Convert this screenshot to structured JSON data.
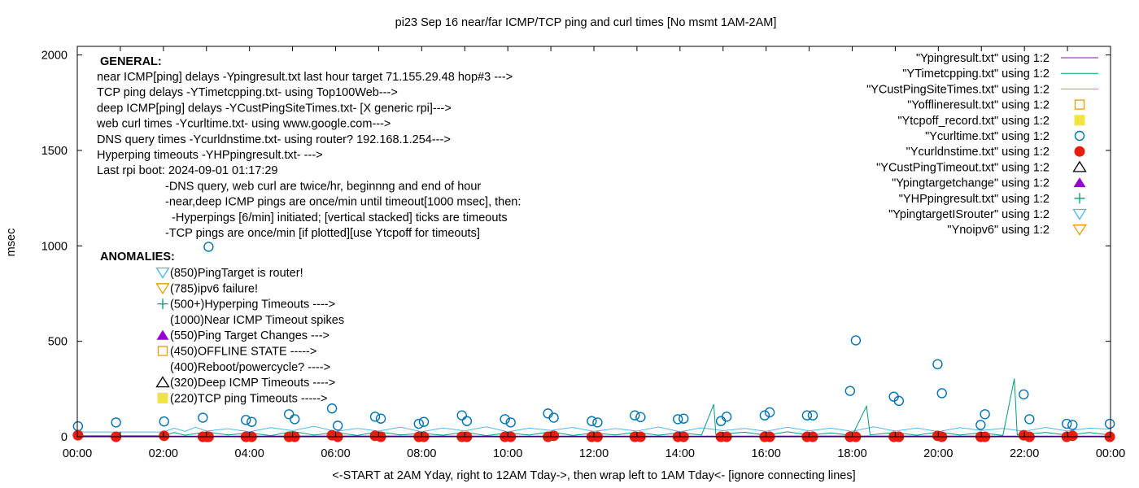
{
  "chart_data": {
    "type": "line",
    "title": "pi23 Sep 16  near/far ICMP/TCP ping and curl times [No msmt 1AM-2AM]",
    "xlabel": "<-START at 2AM Yday, right to 12AM Tday->, then wrap left to 1AM Tday<- [ignore connecting lines]",
    "ylabel": "msec",
    "xlim": [
      "00:00",
      "24:00"
    ],
    "ylim": [
      0,
      2045
    ],
    "x_ticks": [
      "00:00",
      "02:00",
      "04:00",
      "06:00",
      "08:00",
      "10:00",
      "12:00",
      "14:00",
      "16:00",
      "18:00",
      "20:00",
      "22:00",
      "00:00"
    ],
    "y_ticks": [
      "0",
      "500",
      "1000",
      "1500",
      "2000"
    ],
    "y_tick_values": [
      0,
      500,
      1000,
      1500,
      2000
    ],
    "grid": false,
    "legend_placement": "top-right",
    "general_heading": "GENERAL:",
    "general_lines": [
      "near ICMP[ping] delays -Ypingresult.txt last hour target 71.155.29.48 hop#3 --->",
      "TCP ping delays -YTimetcpping.txt- using Top100Web--->",
      "deep ICMP[ping] delays -YCustPingSiteTimes.txt- [X generic rpi]--->",
      "web curl times -Ycurltime.txt- using www.google.com--->",
      "DNS query times -Ycurldnstime.txt- using router? 192.168.1.254--->",
      "Hyperping timeouts -YHPpingresult.txt- --->",
      "Last rpi boot: 2024-09-01 01:17:29"
    ],
    "general_notes": [
      "-DNS query, web curl are twice/hr, beginnng and end of hour",
      "-near,deep ICMP pings are once/min until timeout[1000 msec], then:",
      "  -Hyperpings [6/min] initiated; [vertical stacked] ticks are timeouts",
      "-TCP pings are once/min [if plotted][use Ytcpoff for timeouts]"
    ],
    "anomalies_heading": "ANOMALIES:",
    "anomalies": [
      {
        "marker": "triangle-down-open",
        "color": "#56b4e9",
        "text": "(850)PingTarget is router!"
      },
      {
        "marker": "triangle-down-open",
        "color": "#e69f00",
        "text": "(785)ipv6 failure!"
      },
      {
        "marker": "plus",
        "color": "#009e73",
        "text": "(500+)Hyperping Timeouts ---->"
      },
      {
        "marker": "none",
        "color": "",
        "text": "(1000)Near ICMP Timeout spikes"
      },
      {
        "marker": "triangle-up-filled",
        "color": "#9400d3",
        "text": "(550)Ping Target Changes --->"
      },
      {
        "marker": "square-open",
        "color": "#e69f00",
        "text": "(450)OFFLINE STATE ----->"
      },
      {
        "marker": "none",
        "color": "",
        "text": "(400)Reboot/powercycle? ---->"
      },
      {
        "marker": "triangle-up-open",
        "color": "#000000",
        "text": "(320)Deep ICMP Timeouts ---->"
      },
      {
        "marker": "square-filled",
        "color": "#f0e442",
        "text": "(220)TCP ping Timeouts ----->"
      }
    ],
    "legend": [
      {
        "label": "\"Ypingresult.txt\" using 1:2",
        "style": "line",
        "color": "#9400d3"
      },
      {
        "label": "\"YTimetcpping.txt\" using 1:2",
        "style": "line",
        "color": "#009e73"
      },
      {
        "label": "\"YCustPingSiteTimes.txt\" using 1:2",
        "style": "line",
        "color": "#56b4e9"
      },
      {
        "label": "\"Yofflineresult.txt\" using 1:2",
        "style": "square-open",
        "color": "#e69f00"
      },
      {
        "label": "\"Ytcpoff_record.txt\" using 1:2",
        "style": "square-filled",
        "color": "#f0e442"
      },
      {
        "label": "\"Ycurltime.txt\" using 1:2",
        "style": "circle-open",
        "color": "#0072b2"
      },
      {
        "label": "\"Ycurldnstime.txt\" using 1:2",
        "style": "circle-filled",
        "color": "#e51e10"
      },
      {
        "label": "\"YCustPingTimeout.txt\" using 1:2",
        "style": "triangle-up-open",
        "color": "#000000"
      },
      {
        "label": "\"Ypingtargetchange\" using 1:2",
        "style": "triangle-up-filled",
        "color": "#9400d3"
      },
      {
        "label": "\"YHPpingresult.txt\" using 1:2",
        "style": "plus",
        "color": "#009e73"
      },
      {
        "label": "\"YpingtargetISrouter\" using 1:2",
        "style": "triangle-down-open",
        "color": "#56b4e9"
      },
      {
        "label": "\"Ynoipv6\" using 1:2",
        "style": "triangle-down-open",
        "color": "#e69f00"
      }
    ],
    "series": [
      {
        "name": "\"YCustPingSiteTimes.txt\" using 1:2",
        "color": "#56b4e9",
        "points": [
          [
            "00:01",
            25
          ],
          [
            "02:00",
            25
          ],
          [
            "02:15",
            45
          ],
          [
            "02:30",
            28
          ],
          [
            "02:45",
            50
          ],
          [
            "03:00",
            30
          ],
          [
            "03:30",
            42
          ],
          [
            "04:00",
            26
          ],
          [
            "04:30",
            48
          ],
          [
            "05:00",
            32
          ],
          [
            "05:30",
            55
          ],
          [
            "06:00",
            28
          ],
          [
            "06:30",
            44
          ],
          [
            "07:00",
            30
          ],
          [
            "07:30",
            50
          ],
          [
            "08:00",
            27
          ],
          [
            "08:30",
            46
          ],
          [
            "09:00",
            31
          ],
          [
            "09:30",
            52
          ],
          [
            "10:00",
            26
          ],
          [
            "10:30",
            45
          ],
          [
            "11:00",
            33
          ],
          [
            "11:30",
            49
          ],
          [
            "12:00",
            28
          ],
          [
            "12:30",
            43
          ],
          [
            "13:00",
            30
          ],
          [
            "13:30",
            51
          ],
          [
            "14:00",
            27
          ],
          [
            "14:30",
            47
          ],
          [
            "15:00",
            32
          ],
          [
            "15:30",
            44
          ],
          [
            "16:00",
            29
          ],
          [
            "16:30",
            50
          ],
          [
            "17:00",
            31
          ],
          [
            "17:30",
            45
          ],
          [
            "18:00",
            28
          ],
          [
            "18:30",
            52
          ],
          [
            "19:00",
            30
          ],
          [
            "19:30",
            46
          ],
          [
            "20:00",
            27
          ],
          [
            "20:30",
            48
          ],
          [
            "21:00",
            33
          ],
          [
            "21:30",
            44
          ],
          [
            "22:00",
            29
          ],
          [
            "22:30",
            49
          ],
          [
            "23:00",
            30
          ],
          [
            "23:30",
            45
          ],
          [
            "23:59",
            40
          ]
        ]
      },
      {
        "name": "\"YTimetcpping.txt\" using 1:2",
        "color": "#009e73",
        "points": [
          [
            "00:01",
            5
          ],
          [
            "01:30",
            5
          ],
          [
            "02:00",
            5
          ],
          [
            "02:15",
            22
          ],
          [
            "02:30",
            8
          ],
          [
            "03:00",
            25
          ],
          [
            "03:30",
            10
          ],
          [
            "04:00",
            20
          ],
          [
            "04:30",
            6
          ],
          [
            "05:00",
            28
          ],
          [
            "05:30",
            9
          ],
          [
            "06:00",
            22
          ],
          [
            "06:30",
            7
          ],
          [
            "07:00",
            26
          ],
          [
            "07:30",
            10
          ],
          [
            "08:00",
            18
          ],
          [
            "08:30",
            8
          ],
          [
            "09:00",
            24
          ],
          [
            "09:30",
            6
          ],
          [
            "10:00",
            20
          ],
          [
            "10:30",
            9
          ],
          [
            "11:00",
            27
          ],
          [
            "11:30",
            7
          ],
          [
            "12:00",
            19
          ],
          [
            "12:30",
            10
          ],
          [
            "13:00",
            23
          ],
          [
            "13:30",
            8
          ],
          [
            "14:00",
            21
          ],
          [
            "14:30",
            9
          ],
          [
            "14:47",
            170
          ],
          [
            "14:50",
            12
          ],
          [
            "15:30",
            24
          ],
          [
            "16:00",
            8
          ],
          [
            "16:30",
            26
          ],
          [
            "17:00",
            9
          ],
          [
            "17:30",
            20
          ],
          [
            "18:00",
            7
          ],
          [
            "18:20",
            160
          ],
          [
            "18:25",
            10
          ],
          [
            "19:00",
            22
          ],
          [
            "19:30",
            8
          ],
          [
            "20:00",
            25
          ],
          [
            "20:30",
            9
          ],
          [
            "21:00",
            21
          ],
          [
            "21:30",
            7
          ],
          [
            "21:46",
            305
          ],
          [
            "21:50",
            10
          ],
          [
            "22:30",
            23
          ],
          [
            "23:00",
            8
          ],
          [
            "23:30",
            22
          ],
          [
            "23:59",
            10
          ]
        ]
      },
      {
        "name": "\"Ypingresult.txt\" using 1:2",
        "color": "#9400d3",
        "points": [
          [
            "00:01",
            3
          ],
          [
            "06:00",
            4
          ],
          [
            "12:00",
            3
          ],
          [
            "18:00",
            4
          ],
          [
            "23:59",
            3
          ]
        ]
      }
    ],
    "curl_points": [
      [
        "00:01",
        55
      ],
      [
        "00:54",
        75
      ],
      [
        "02:01",
        80
      ],
      [
        "02:55",
        100
      ],
      [
        "03:03",
        995
      ],
      [
        "03:55",
        88
      ],
      [
        "04:03",
        78
      ],
      [
        "04:55",
        118
      ],
      [
        "05:03",
        92
      ],
      [
        "05:55",
        148
      ],
      [
        "06:03",
        58
      ],
      [
        "06:55",
        105
      ],
      [
        "07:03",
        95
      ],
      [
        "07:56",
        68
      ],
      [
        "08:03",
        78
      ],
      [
        "08:56",
        112
      ],
      [
        "09:03",
        82
      ],
      [
        "09:56",
        92
      ],
      [
        "10:04",
        75
      ],
      [
        "10:56",
        122
      ],
      [
        "11:04",
        100
      ],
      [
        "11:57",
        82
      ],
      [
        "12:05",
        75
      ],
      [
        "12:57",
        112
      ],
      [
        "13:05",
        103
      ],
      [
        "13:57",
        92
      ],
      [
        "14:05",
        95
      ],
      [
        "14:57",
        82
      ],
      [
        "15:05",
        105
      ],
      [
        "15:58",
        112
      ],
      [
        "16:05",
        128
      ],
      [
        "16:57",
        112
      ],
      [
        "17:05",
        112
      ],
      [
        "17:57",
        240
      ],
      [
        "18:05",
        505
      ],
      [
        "18:58",
        210
      ],
      [
        "19:05",
        188
      ],
      [
        "19:59",
        380
      ],
      [
        "20:05",
        228
      ],
      [
        "20:59",
        62
      ],
      [
        "21:05",
        118
      ],
      [
        "21:59",
        222
      ],
      [
        "22:07",
        92
      ],
      [
        "22:59",
        68
      ],
      [
        "23:07",
        62
      ],
      [
        "23:59",
        68
      ]
    ],
    "dns_points": [
      [
        "00:01",
        8
      ],
      [
        "00:54",
        0
      ],
      [
        "02:01",
        5
      ],
      [
        "02:55",
        0
      ],
      [
        "03:00",
        0
      ],
      [
        "03:03",
        0
      ],
      [
        "03:55",
        0
      ],
      [
        "04:03",
        0
      ],
      [
        "04:55",
        0
      ],
      [
        "05:03",
        0
      ],
      [
        "05:55",
        8
      ],
      [
        "06:03",
        0
      ],
      [
        "06:55",
        5
      ],
      [
        "07:03",
        0
      ],
      [
        "07:56",
        0
      ],
      [
        "08:03",
        0
      ],
      [
        "08:56",
        0
      ],
      [
        "09:03",
        0
      ],
      [
        "09:56",
        0
      ],
      [
        "10:04",
        0
      ],
      [
        "10:56",
        0
      ],
      [
        "11:04",
        5
      ],
      [
        "11:57",
        0
      ],
      [
        "12:05",
        0
      ],
      [
        "12:57",
        0
      ],
      [
        "13:05",
        0
      ],
      [
        "13:57",
        0
      ],
      [
        "14:05",
        0
      ],
      [
        "14:57",
        0
      ],
      [
        "15:05",
        0
      ],
      [
        "15:58",
        0
      ],
      [
        "16:05",
        0
      ],
      [
        "16:57",
        0
      ],
      [
        "17:05",
        0
      ],
      [
        "17:57",
        0
      ],
      [
        "18:05",
        0
      ],
      [
        "18:58",
        0
      ],
      [
        "19:05",
        0
      ],
      [
        "19:59",
        5
      ],
      [
        "20:05",
        0
      ],
      [
        "20:59",
        0
      ],
      [
        "21:05",
        0
      ],
      [
        "21:59",
        8
      ],
      [
        "22:07",
        0
      ],
      [
        "22:59",
        0
      ],
      [
        "23:07",
        5
      ],
      [
        "23:59",
        0
      ]
    ]
  }
}
